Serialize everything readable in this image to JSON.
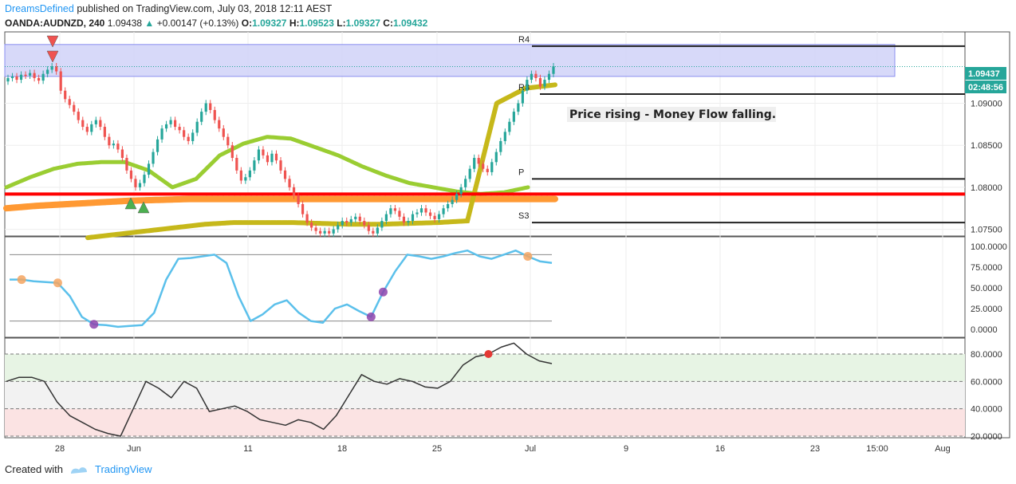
{
  "header": {
    "author": "DreamsDefined",
    "published": "published on TradingView.com, July 03, 2018 12:11 AEST",
    "symbol": "OANDA:AUDNZD, 240",
    "price": "1.09438",
    "change": "+0.00147 (+0.13%)",
    "open_label": "O:",
    "open": "1.09327",
    "high_label": "H:",
    "high": "1.09523",
    "low_label": "L:",
    "low": "1.09327",
    "close_label": "C:",
    "close": "1.09432"
  },
  "footer": {
    "created_with": "Created with",
    "brand": "TradingView"
  },
  "colors": {
    "up": "#26a69a",
    "down": "#ef5350",
    "rsi": "#5bc0eb",
    "zone": "#cdd0f7",
    "support": "#ff0000"
  },
  "chart_data": [
    {
      "type": "candlestick",
      "symbol": "OANDA:AUDNZD",
      "timeframe": "240",
      "x_tick_labels": [
        "28",
        "Jun",
        "11",
        "18",
        "25",
        "Jul",
        "9",
        "16",
        "23",
        "15:00",
        "Aug"
      ],
      "y_tick_labels": [
        "1.09000",
        "1.08500",
        "1.08000",
        "1.07500"
      ],
      "ylim": [
        1.0742,
        1.0985
      ],
      "current_price_label": "1.09437",
      "countdown_label": "02:48:56",
      "annotation": "Price rising - Money Flow falling.",
      "pivot_labels": [
        "R4",
        "R3",
        "P",
        "S3"
      ],
      "pivot_levels": {
        "R4": 1.0968,
        "R3": 1.0911,
        "P": 1.081,
        "S3": 1.0758
      },
      "support_level": 1.0792,
      "resistance_zone": [
        1.0932,
        1.097
      ],
      "close_series": [
        1.093,
        1.0932,
        1.0928,
        1.0934,
        1.0933,
        1.0936,
        1.093,
        1.0927,
        1.0935,
        1.094,
        1.0944,
        1.0938,
        1.0915,
        1.0905,
        1.0898,
        1.089,
        1.088,
        1.0872,
        1.0866,
        1.0875,
        1.088,
        1.0872,
        1.086,
        1.085,
        1.0852,
        1.0845,
        1.0835,
        1.082,
        1.081,
        1.08,
        1.0805,
        1.0815,
        1.0828,
        1.0842,
        1.0857,
        1.087,
        1.0875,
        1.088,
        1.0872,
        1.0868,
        1.086,
        1.0855,
        1.0865,
        1.0878,
        1.089,
        1.09,
        1.0892,
        1.088,
        1.087,
        1.086,
        1.085,
        1.0835,
        1.082,
        1.0808,
        1.0812,
        1.082,
        1.0832,
        1.0845,
        1.0838,
        1.083,
        1.084,
        1.0832,
        1.082,
        1.081,
        1.08,
        1.079,
        1.078,
        1.0768,
        1.0758,
        1.0752,
        1.0748,
        1.0745,
        1.0748,
        1.0745,
        1.075,
        1.0755,
        1.076,
        1.0758,
        1.0762,
        1.0765,
        1.076,
        1.0755,
        1.0748,
        1.0745,
        1.0752,
        1.076,
        1.0768,
        1.0775,
        1.0772,
        1.0765,
        1.0758,
        1.076,
        1.0768,
        1.077,
        1.0775,
        1.077,
        1.0766,
        1.0762,
        1.0768,
        1.0775,
        1.078,
        1.0785,
        1.0792,
        1.08,
        1.081,
        1.0822,
        1.0835,
        1.0828,
        1.0822,
        1.0818,
        1.083,
        1.0842,
        1.0855,
        1.0866,
        1.0878,
        1.089,
        1.09,
        1.0915,
        1.0928,
        1.0935,
        1.093,
        1.092,
        1.0928,
        1.0935,
        1.0944
      ],
      "series": [
        {
          "name": "light-green-ma",
          "values": [
            1.08,
            1.0812,
            1.0822,
            1.0828,
            1.083,
            1.083,
            1.082,
            1.08,
            1.081,
            1.0838,
            1.0852,
            1.086,
            1.0858,
            1.0848,
            1.0838,
            1.0825,
            1.0814,
            1.0805,
            1.08,
            1.0795,
            1.0792,
            1.0794,
            1.08
          ]
        },
        {
          "name": "orange-ma",
          "values": [
            1.0775,
            1.0778,
            1.078,
            1.0782,
            1.0784,
            1.0785,
            1.0786,
            1.0786,
            1.0786,
            1.0786,
            1.0786,
            1.0786,
            1.0786,
            1.0786,
            1.0786,
            1.0786,
            1.0786,
            1.0786,
            1.0786
          ]
        },
        {
          "name": "olive-ma",
          "values": [
            1.074,
            1.0744,
            1.0748,
            1.0752,
            1.0756,
            1.0758,
            1.0758,
            1.0758,
            1.0757,
            1.0756,
            1.0756,
            1.0757,
            1.0758,
            1.076,
            1.09,
            1.0918,
            1.0922
          ]
        }
      ]
    },
    {
      "type": "line",
      "name": "oscillator-1",
      "y_tick_labels": [
        "100.0000",
        "75.0000",
        "50.0000",
        "25.0000",
        "0.0000"
      ],
      "ylim": [
        0,
        100
      ],
      "levels": [
        90,
        10
      ],
      "values": [
        60,
        60,
        58,
        57,
        56,
        40,
        15,
        6,
        5,
        3,
        4,
        5,
        20,
        60,
        85,
        86,
        88,
        90,
        80,
        40,
        10,
        18,
        30,
        35,
        20,
        10,
        8,
        25,
        30,
        22,
        15,
        45,
        70,
        90,
        88,
        85,
        88,
        92,
        95,
        88,
        85,
        90,
        95,
        88,
        82,
        80
      ]
    },
    {
      "type": "line",
      "name": "money-flow",
      "y_tick_labels": [
        "80.0000",
        "60.0000",
        "40.0000",
        "20.0000"
      ],
      "ylim": [
        20,
        88
      ],
      "levels": [
        80,
        60,
        40,
        20
      ],
      "values": [
        60,
        63,
        63,
        60,
        45,
        35,
        30,
        25,
        22,
        20,
        40,
        60,
        55,
        48,
        60,
        55,
        38,
        40,
        42,
        38,
        32,
        30,
        28,
        32,
        30,
        25,
        35,
        50,
        65,
        60,
        58,
        62,
        60,
        56,
        55,
        60,
        72,
        78,
        80,
        85,
        88,
        80,
        75,
        73
      ]
    }
  ]
}
